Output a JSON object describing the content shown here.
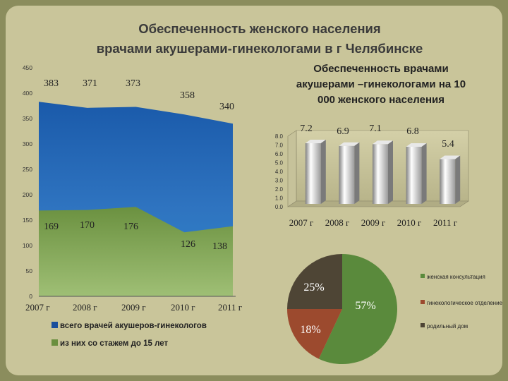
{
  "page": {
    "title_line1": "Обеспеченность женского населения",
    "title_line2": "врачами акушерами-гинекологами в г Челябинске"
  },
  "chart_data": [
    {
      "type": "area",
      "categories": [
        "2007 г",
        "2008 г",
        "2009 г",
        "2010 г",
        "2011 г"
      ],
      "series": [
        {
          "name": "всего врачей акушеров-гинекологов",
          "values": [
            383,
            371,
            373,
            358,
            340
          ],
          "color": "#1a4f9c"
        },
        {
          "name": "из них со стажем до 15 лет",
          "values": [
            169,
            170,
            176,
            126,
            138
          ],
          "color": "#6a8f3e"
        }
      ],
      "ylim": [
        0,
        450
      ],
      "yticks": [
        0,
        50,
        100,
        150,
        200,
        250,
        300,
        350,
        400,
        450
      ],
      "grid": false,
      "legend": "bottom"
    },
    {
      "type": "bar",
      "title": "Обеспеченность врачами акушерами –гинекологами на 10 000 женского населения",
      "title_lines": [
        "Обеспеченность врачами",
        "акушерами –гинекологами на 10",
        "000 женского населения"
      ],
      "categories": [
        "2007 г",
        "2008 г",
        "2009 г",
        "2010 г",
        "2011 г"
      ],
      "values": [
        7.2,
        6.9,
        7.1,
        6.8,
        5.4
      ],
      "ylim": [
        0,
        8.0
      ],
      "yticks": [
        "0.0",
        "1.0",
        "2.0",
        "3.0",
        "4.0",
        "5.0",
        "6.0",
        "7.0",
        "8.0"
      ],
      "grid": false
    },
    {
      "type": "pie",
      "slices": [
        {
          "label": "женская консультация",
          "value": 57,
          "display": "57%",
          "color": "#5a8a3c"
        },
        {
          "label": "гинекологическое отделение",
          "value": 18,
          "display": "18%",
          "color": "#9c4a2e"
        },
        {
          "label": "родильный дом",
          "value": 25,
          "display": "25%",
          "color": "#4e4535"
        }
      ],
      "legend": "right"
    }
  ]
}
